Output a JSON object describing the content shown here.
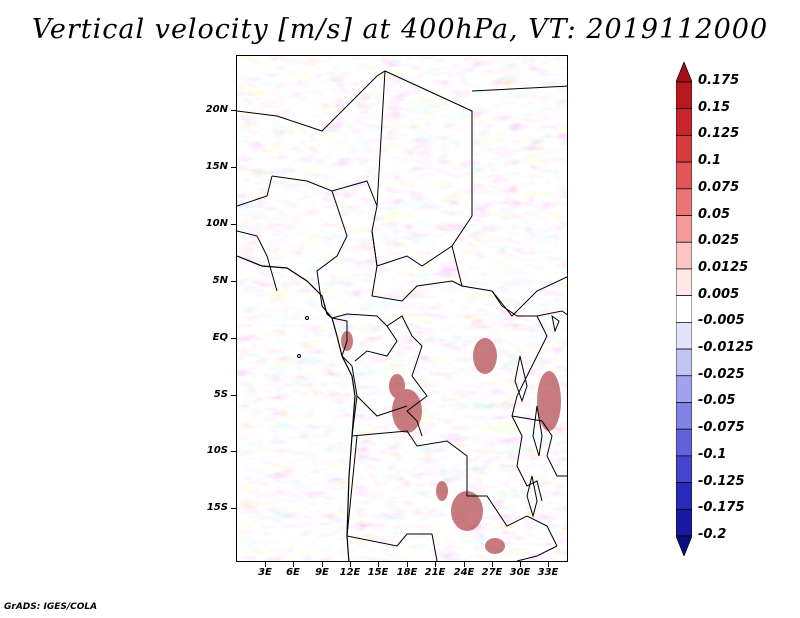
{
  "title": "Vertical velocity [m/s] at 400hPa, VT: 2019112000",
  "footer": "GrADS: IGES/COLA",
  "lat_labels": [
    "20N",
    "15N",
    "10N",
    "5N",
    "EQ",
    "5S",
    "10S",
    "15S"
  ],
  "lon_labels": [
    "3E",
    "6E",
    "9E",
    "12E",
    "15E",
    "18E",
    "21E",
    "24E",
    "27E",
    "30E",
    "33E"
  ],
  "colorbar": {
    "labels": [
      "0.175",
      "0.15",
      "0.125",
      "0.1",
      "0.075",
      "0.05",
      "0.025",
      "0.0125",
      "0.005",
      "-0.005",
      "-0.0125",
      "-0.025",
      "-0.05",
      "-0.075",
      "-0.1",
      "-0.125",
      "-0.175",
      "-0.2"
    ],
    "colors": [
      "#a50f15",
      "#b7181f",
      "#c8242c",
      "#d73a3f",
      "#e25558",
      "#ec7577",
      "#f59a9b",
      "#fbc6c6",
      "#fde8e8",
      "#ffffff",
      "#e3e3fb",
      "#c3c3f5",
      "#a2a2ee",
      "#8282e6",
      "#6262dc",
      "#4444cf",
      "#2a2ab9",
      "#1a1aa0",
      "#0d0d80"
    ]
  },
  "map": {
    "region": "Central Africa",
    "lon_range": [
      0,
      35
    ],
    "lat_range": [
      -20,
      25
    ],
    "field": "vertical velocity"
  }
}
